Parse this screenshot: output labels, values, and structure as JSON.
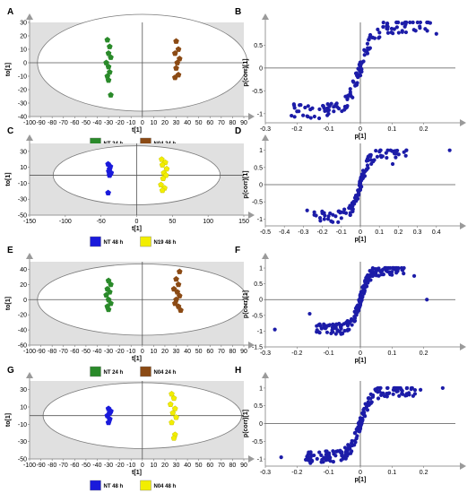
{
  "colors": {
    "NT24": "#2a8a2a",
    "N04_24": "#8b4a14",
    "NT48": "#1a1adb",
    "N19_48": "#f2ee00",
    "N04_48": "#f2ee00",
    "loading": "#1c1ca8",
    "shade": "#e0e0e0"
  },
  "chart_data": [
    {
      "panel": "A",
      "type": "scatter",
      "xlabel": "t[1]",
      "ylabel": "to[1]",
      "xlim": [
        -100,
        90
      ],
      "ylim": [
        -40,
        30
      ],
      "xticks": [
        -100,
        -90,
        -80,
        -70,
        -60,
        -50,
        -40,
        -30,
        -20,
        -10,
        0,
        10,
        20,
        30,
        40,
        50,
        60,
        70,
        80,
        90
      ],
      "yticks": [
        30,
        20,
        10,
        0,
        -10,
        -20,
        -30,
        -40
      ],
      "ellipse": {
        "rx": 93,
        "ry": 36
      },
      "legend": [
        {
          "label": "NT 24 h",
          "color": "#2a8a2a"
        },
        {
          "label": "N04 24 h",
          "color": "#8b4a14"
        }
      ],
      "series": [
        {
          "name": "NT 24 h",
          "color": "#2a8a2a",
          "marker": "pentagon",
          "x": [
            -31,
            -29,
            -30,
            -28,
            -32,
            -30,
            -29,
            -31,
            -30,
            -28
          ],
          "y": [
            17,
            12,
            7,
            4,
            0,
            -3,
            -7,
            -10,
            -13,
            -24
          ]
        },
        {
          "name": "N04 24 h",
          "color": "#8b4a14",
          "marker": "pentagon",
          "x": [
            30,
            32,
            29,
            33,
            31,
            30,
            32,
            29
          ],
          "y": [
            16,
            10,
            7,
            3,
            0,
            -4,
            -9,
            -11
          ]
        }
      ]
    },
    {
      "panel": "B",
      "type": "scatter",
      "xlabel": "p[1]",
      "ylabel": "p(corr)[1]",
      "xlim": [
        -0.3,
        0.3
      ],
      "ylim": [
        -1.2,
        1
      ],
      "xticks": [
        -0.3,
        -0.2,
        -0.1,
        0,
        0.1,
        0.2
      ],
      "yticks": [
        0.5,
        0,
        -0.5,
        -1
      ],
      "series": [
        {
          "name": "",
          "color": "#1c1ca8",
          "marker": "circle",
          "seed": 11,
          "n": 160,
          "xscale": 0.045,
          "outliers": [
            [
              -0.2,
              -0.95
            ],
            [
              0.24,
              0.75
            ]
          ]
        }
      ]
    },
    {
      "panel": "C",
      "type": "scatter",
      "xlabel": "t[1]",
      "ylabel": "to[1]",
      "xlim": [
        -150,
        150
      ],
      "ylim": [
        -50,
        40
      ],
      "xticks": [
        -150,
        -100,
        -50,
        0,
        50,
        100,
        150
      ],
      "yticks": [
        30,
        10,
        -10,
        -30,
        -50
      ],
      "ellipse": {
        "rx": 117,
        "ry": 37
      },
      "legend": [
        {
          "label": "NT 48 h",
          "color": "#1a1adb"
        },
        {
          "label": "N19 48 h",
          "color": "#f2ee00"
        }
      ],
      "series": [
        {
          "name": "NT 48 h",
          "color": "#1a1adb",
          "marker": "pentagon",
          "x": [
            -40,
            -37,
            -38,
            -39,
            -36,
            -38,
            -40
          ],
          "y": [
            14,
            11,
            8,
            5,
            3,
            0,
            -22
          ]
        },
        {
          "name": "N19 48 h",
          "color": "#f2ee00",
          "marker": "pentagon",
          "x": [
            35,
            40,
            36,
            42,
            38,
            41,
            37,
            34,
            39,
            36
          ],
          "y": [
            20,
            16,
            13,
            8,
            3,
            0,
            -4,
            -12,
            -16,
            -19
          ]
        }
      ]
    },
    {
      "panel": "D",
      "type": "scatter",
      "xlabel": "p[1]",
      "ylabel": "p(corr)[1]",
      "xlim": [
        -0.5,
        0.5
      ],
      "ylim": [
        -1.2,
        1.2
      ],
      "xticks": [
        -0.5,
        -0.4,
        -0.3,
        -0.2,
        -0.1,
        0,
        0.1,
        0.2,
        0.3,
        0.4
      ],
      "yticks": [
        1,
        0.5,
        0,
        -0.5,
        -1
      ],
      "series": [
        {
          "name": "",
          "color": "#1c1ca8",
          "marker": "circle",
          "seed": 23,
          "n": 130,
          "xscale": 0.05,
          "outliers": [
            [
              -0.28,
              -0.75
            ],
            [
              0.47,
              1.0
            ],
            [
              0.17,
              0.6
            ]
          ]
        }
      ]
    },
    {
      "panel": "E",
      "type": "scatter",
      "xlabel": "t[1]",
      "ylabel": "to[1]",
      "xlim": [
        -100,
        90
      ],
      "ylim": [
        -60,
        50
      ],
      "xticks": [
        -100,
        -90,
        -80,
        -70,
        -60,
        -50,
        -40,
        -30,
        -20,
        -10,
        0,
        10,
        20,
        30,
        40,
        50,
        60,
        70,
        80,
        90
      ],
      "yticks": [
        40,
        20,
        0,
        -20,
        -40,
        -60
      ],
      "ellipse": {
        "rx": 93,
        "ry": 47
      },
      "legend": [
        {
          "label": "NT 24 h",
          "color": "#2a8a2a"
        },
        {
          "label": "N04 24 h",
          "color": "#8b4a14"
        }
      ],
      "series": [
        {
          "name": "NT 24 h",
          "color": "#2a8a2a",
          "marker": "pentagon",
          "x": [
            -30,
            -28,
            -31,
            -29,
            -32,
            -30,
            -28,
            -31,
            -30
          ],
          "y": [
            25,
            20,
            14,
            10,
            6,
            0,
            -5,
            -9,
            -13
          ]
        },
        {
          "name": "N04 24 h",
          "color": "#8b4a14",
          "marker": "pentagon",
          "x": [
            33,
            30,
            32,
            28,
            31,
            33,
            30,
            29,
            32,
            34
          ],
          "y": [
            37,
            27,
            20,
            14,
            10,
            5,
            0,
            -5,
            -9,
            -14
          ]
        }
      ]
    },
    {
      "panel": "F",
      "type": "scatter",
      "xlabel": "p[1]",
      "ylabel": "p(corr)[1]",
      "xlim": [
        -0.3,
        0.3
      ],
      "ylim": [
        -1.5,
        1.2
      ],
      "xticks": [
        -0.3,
        -0.2,
        -0.1,
        0,
        0.1,
        0.2
      ],
      "yticks": [
        1,
        0.5,
        0,
        -0.5,
        -1,
        -1.5
      ],
      "series": [
        {
          "name": "",
          "color": "#1c1ca8",
          "marker": "circle",
          "seed": 37,
          "n": 220,
          "xscale": 0.028,
          "outliers": [
            [
              -0.27,
              -0.95
            ],
            [
              -0.16,
              -0.45
            ],
            [
              0.21,
              0.0
            ],
            [
              0.17,
              0.75
            ],
            [
              0.13,
              1.0
            ]
          ]
        }
      ]
    },
    {
      "panel": "G",
      "type": "scatter",
      "xlabel": "t[1]",
      "ylabel": "to[1]",
      "xlim": [
        -100,
        90
      ],
      "ylim": [
        -50,
        40
      ],
      "xticks": [
        -100,
        -90,
        -80,
        -70,
        -60,
        -50,
        -40,
        -30,
        -20,
        -10,
        0,
        10,
        20,
        30,
        40,
        50,
        60,
        70,
        80,
        90
      ],
      "yticks": [
        30,
        10,
        -10,
        -30,
        -50
      ],
      "ellipse": {
        "rx": 88,
        "ry": 38
      },
      "legend": [
        {
          "label": "NT 48 h",
          "color": "#1a1adb"
        },
        {
          "label": "N04 48 h",
          "color": "#f2ee00"
        }
      ],
      "series": [
        {
          "name": "NT 48 h",
          "color": "#1a1adb",
          "marker": "pentagon",
          "x": [
            -30,
            -28,
            -29,
            -31,
            -29,
            -30
          ],
          "y": [
            8,
            5,
            3,
            0,
            -4,
            -8
          ]
        },
        {
          "name": "N04 48 h",
          "color": "#f2ee00",
          "marker": "pentagon",
          "x": [
            26,
            28,
            25,
            29,
            27,
            30,
            26,
            29,
            28
          ],
          "y": [
            25,
            20,
            13,
            8,
            3,
            -2,
            -8,
            -22,
            -26
          ]
        }
      ]
    },
    {
      "panel": "H",
      "type": "scatter",
      "xlabel": "p[1]",
      "ylabel": "p(corr)[1]",
      "xlim": [
        -0.3,
        0.3
      ],
      "ylim": [
        -1.2,
        1.2
      ],
      "xticks": [
        -0.3,
        -0.2,
        -0.1,
        0,
        0.1,
        0.2
      ],
      "yticks": [
        1,
        0.5,
        0,
        -0.5,
        -1
      ],
      "series": [
        {
          "name": "",
          "color": "#1c1ca8",
          "marker": "circle",
          "seed": 53,
          "n": 200,
          "xscale": 0.035,
          "outliers": [
            [
              -0.25,
              -0.95
            ],
            [
              0.19,
              0.95
            ],
            [
              0.26,
              1.0
            ]
          ]
        }
      ]
    }
  ]
}
